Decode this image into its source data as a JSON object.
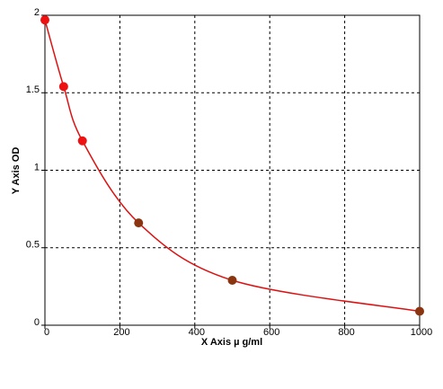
{
  "chart_data": {
    "type": "scatter",
    "x_label": "X Axis  µ g/ml",
    "y_label": "Y Axis OD",
    "series": [
      {
        "x": [
          0,
          50,
          100,
          250,
          500,
          1000
        ],
        "values": [
          1.97,
          1.54,
          1.19,
          0.66,
          0.29,
          0.09
        ],
        "point_colors": [
          "#ee1111",
          "#ee1111",
          "#ee1111",
          "#8b3510",
          "#8b3510",
          "#8b3510"
        ],
        "line_color": "#dd1111"
      }
    ],
    "xlim": [
      0,
      1000
    ],
    "ylim": [
      0,
      2
    ],
    "xticks": [
      0,
      200,
      400,
      600,
      800,
      1000
    ],
    "yticks": [
      0,
      0.5,
      1,
      1.5,
      2
    ],
    "grid": true
  }
}
